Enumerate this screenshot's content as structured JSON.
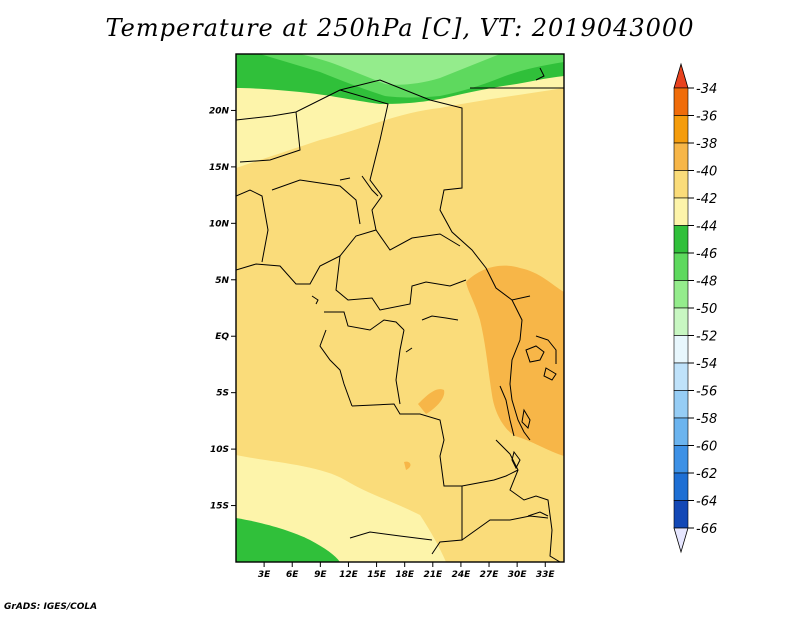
{
  "title": "Temperature at 250hPa [C], VT: 2019043000",
  "credit": "GrADS: IGES/COLA",
  "map": {
    "lat_ticks": [
      "20N",
      "15N",
      "10N",
      "5N",
      "EQ",
      "5S",
      "10S",
      "15S"
    ],
    "lon_ticks": [
      "3E",
      "6E",
      "9E",
      "12E",
      "15E",
      "18E",
      "21E",
      "24E",
      "27E",
      "30E",
      "33E"
    ],
    "lat_values": [
      20,
      15,
      10,
      5,
      0,
      -5,
      -10,
      -15
    ],
    "lon_values": [
      3,
      6,
      9,
      12,
      15,
      18,
      21,
      24,
      27,
      30,
      33
    ],
    "lat_range": [
      -20,
      25
    ],
    "lon_range": [
      0,
      35
    ]
  },
  "colorbar": {
    "labels": [
      "-34",
      "-36",
      "-38",
      "-40",
      "-42",
      "-44",
      "-46",
      "-48",
      "-50",
      "-52",
      "-54",
      "-56",
      "-58",
      "-60",
      "-62",
      "-64",
      "-66"
    ],
    "colors": [
      "#e6451e",
      "#f06c0a",
      "#f59c0c",
      "#f7b648",
      "#fadc7a",
      "#fdf4aa",
      "#30c03a",
      "#5ed95e",
      "#94ec8c",
      "#c8f7c2",
      "#e8f7fd",
      "#bfe2fa",
      "#96cdf5",
      "#6bb4ef",
      "#3d91e6",
      "#1e6fd4",
      "#1348b6",
      "#0b228e"
    ],
    "top_arrow_color": "#e8421e",
    "bottom_arrow_color": "#e6e6ff"
  }
}
